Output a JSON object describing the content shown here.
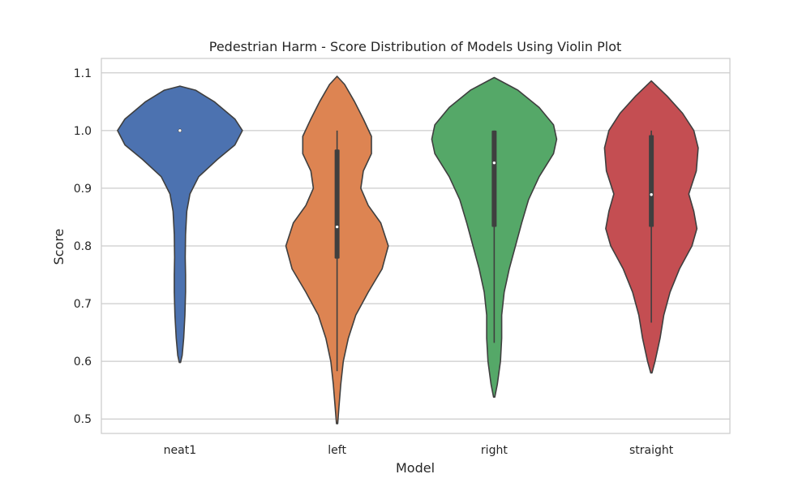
{
  "chart_data": {
    "type": "violin",
    "title": "Pedestrian Harm - Score Distribution of Models Using Violin Plot",
    "xlabel": "Model",
    "ylabel": "Score",
    "ylim": [
      0.475,
      1.125
    ],
    "yticks": [
      0.5,
      0.6,
      0.7,
      0.8,
      0.9,
      1.0,
      1.1
    ],
    "grid": "y",
    "categories": [
      "neat1",
      "left",
      "right",
      "straight"
    ],
    "colors": [
      "#4c72b0",
      "#dd8452",
      "#55a868",
      "#c44e52"
    ],
    "series": [
      {
        "category": "neat1",
        "median": 1.0,
        "q1": 1.0,
        "q3": 1.0,
        "whisker_low": 1.0,
        "whisker_high": 1.0,
        "density": [
          [
            0.598,
            0.01
          ],
          [
            0.61,
            0.035
          ],
          [
            0.64,
            0.06
          ],
          [
            0.68,
            0.08
          ],
          [
            0.72,
            0.09
          ],
          [
            0.75,
            0.09
          ],
          [
            0.78,
            0.085
          ],
          [
            0.82,
            0.09
          ],
          [
            0.86,
            0.11
          ],
          [
            0.89,
            0.16
          ],
          [
            0.92,
            0.3
          ],
          [
            0.95,
            0.6
          ],
          [
            0.975,
            0.88
          ],
          [
            1.0,
            1.0
          ],
          [
            1.02,
            0.88
          ],
          [
            1.05,
            0.55
          ],
          [
            1.07,
            0.25
          ],
          [
            1.077,
            0.0
          ]
        ]
      },
      {
        "category": "left",
        "median": 0.833,
        "q1": 0.778,
        "q3": 0.967,
        "whisker_low": 0.583,
        "whisker_high": 1.0,
        "density": [
          [
            0.492,
            0.01
          ],
          [
            0.52,
            0.03
          ],
          [
            0.56,
            0.06
          ],
          [
            0.6,
            0.1
          ],
          [
            0.64,
            0.18
          ],
          [
            0.68,
            0.3
          ],
          [
            0.72,
            0.5
          ],
          [
            0.76,
            0.72
          ],
          [
            0.8,
            0.82
          ],
          [
            0.84,
            0.7
          ],
          [
            0.87,
            0.5
          ],
          [
            0.9,
            0.38
          ],
          [
            0.93,
            0.42
          ],
          [
            0.96,
            0.55
          ],
          [
            0.99,
            0.55
          ],
          [
            1.02,
            0.42
          ],
          [
            1.05,
            0.28
          ],
          [
            1.08,
            0.12
          ],
          [
            1.094,
            0.0
          ]
        ]
      },
      {
        "category": "right",
        "median": 0.944,
        "q1": 0.833,
        "q3": 1.0,
        "whisker_low": 0.632,
        "whisker_high": 1.0,
        "density": [
          [
            0.538,
            0.01
          ],
          [
            0.56,
            0.05
          ],
          [
            0.6,
            0.1
          ],
          [
            0.64,
            0.12
          ],
          [
            0.68,
            0.12
          ],
          [
            0.72,
            0.16
          ],
          [
            0.76,
            0.24
          ],
          [
            0.8,
            0.34
          ],
          [
            0.84,
            0.44
          ],
          [
            0.88,
            0.55
          ],
          [
            0.92,
            0.72
          ],
          [
            0.96,
            0.95
          ],
          [
            0.985,
            1.0
          ],
          [
            1.01,
            0.95
          ],
          [
            1.04,
            0.72
          ],
          [
            1.07,
            0.38
          ],
          [
            1.092,
            0.0
          ]
        ]
      },
      {
        "category": "straight",
        "median": 0.889,
        "q1": 0.833,
        "q3": 0.992,
        "whisker_low": 0.667,
        "whisker_high": 1.0,
        "density": [
          [
            0.58,
            0.01
          ],
          [
            0.6,
            0.06
          ],
          [
            0.64,
            0.14
          ],
          [
            0.68,
            0.2
          ],
          [
            0.72,
            0.3
          ],
          [
            0.76,
            0.45
          ],
          [
            0.8,
            0.65
          ],
          [
            0.83,
            0.73
          ],
          [
            0.86,
            0.68
          ],
          [
            0.89,
            0.6
          ],
          [
            0.93,
            0.72
          ],
          [
            0.97,
            0.75
          ],
          [
            1.0,
            0.68
          ],
          [
            1.03,
            0.5
          ],
          [
            1.06,
            0.25
          ],
          [
            1.086,
            0.0
          ]
        ]
      }
    ]
  }
}
